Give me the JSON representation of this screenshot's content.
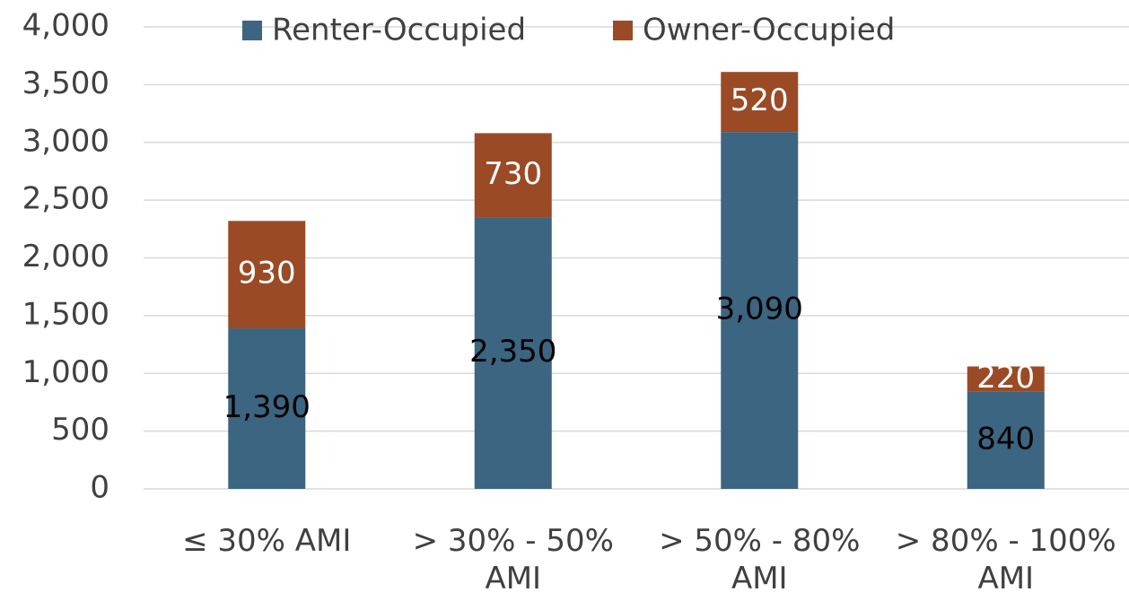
{
  "chart_data": {
    "type": "bar",
    "stacked": true,
    "categories": [
      "≤ 30% AMI",
      "> 30% - 50% AMI",
      "> 50% - 80% AMI",
      "> 80% - 100% AMI"
    ],
    "series": [
      {
        "name": "Renter-Occupied",
        "color": "#3b6580",
        "label_color": "#000000",
        "values": [
          1390,
          2350,
          3090,
          840
        ],
        "value_labels": [
          "1,390",
          "2,350",
          "3,090",
          "840"
        ]
      },
      {
        "name": "Owner-Occupied",
        "color": "#9b4a26",
        "label_color": "#ffffff",
        "values": [
          930,
          730,
          520,
          220
        ],
        "value_labels": [
          "930",
          "730",
          "520",
          "220"
        ]
      }
    ],
    "ylim": [
      0,
      4000
    ],
    "yticks": [
      0,
      500,
      {
        "value": 1000,
        "label": "1,000"
      },
      {
        "value": 1500,
        "label": "1,500"
      },
      {
        "value": 2000,
        "label": "2,000"
      },
      {
        "value": 2500,
        "label": "2,500"
      },
      {
        "value": 3000,
        "label": "3,000"
      },
      {
        "value": 3500,
        "label": "3,500"
      },
      {
        "value": 4000,
        "label": "4,000"
      }
    ],
    "grid": true,
    "legend": "top"
  }
}
